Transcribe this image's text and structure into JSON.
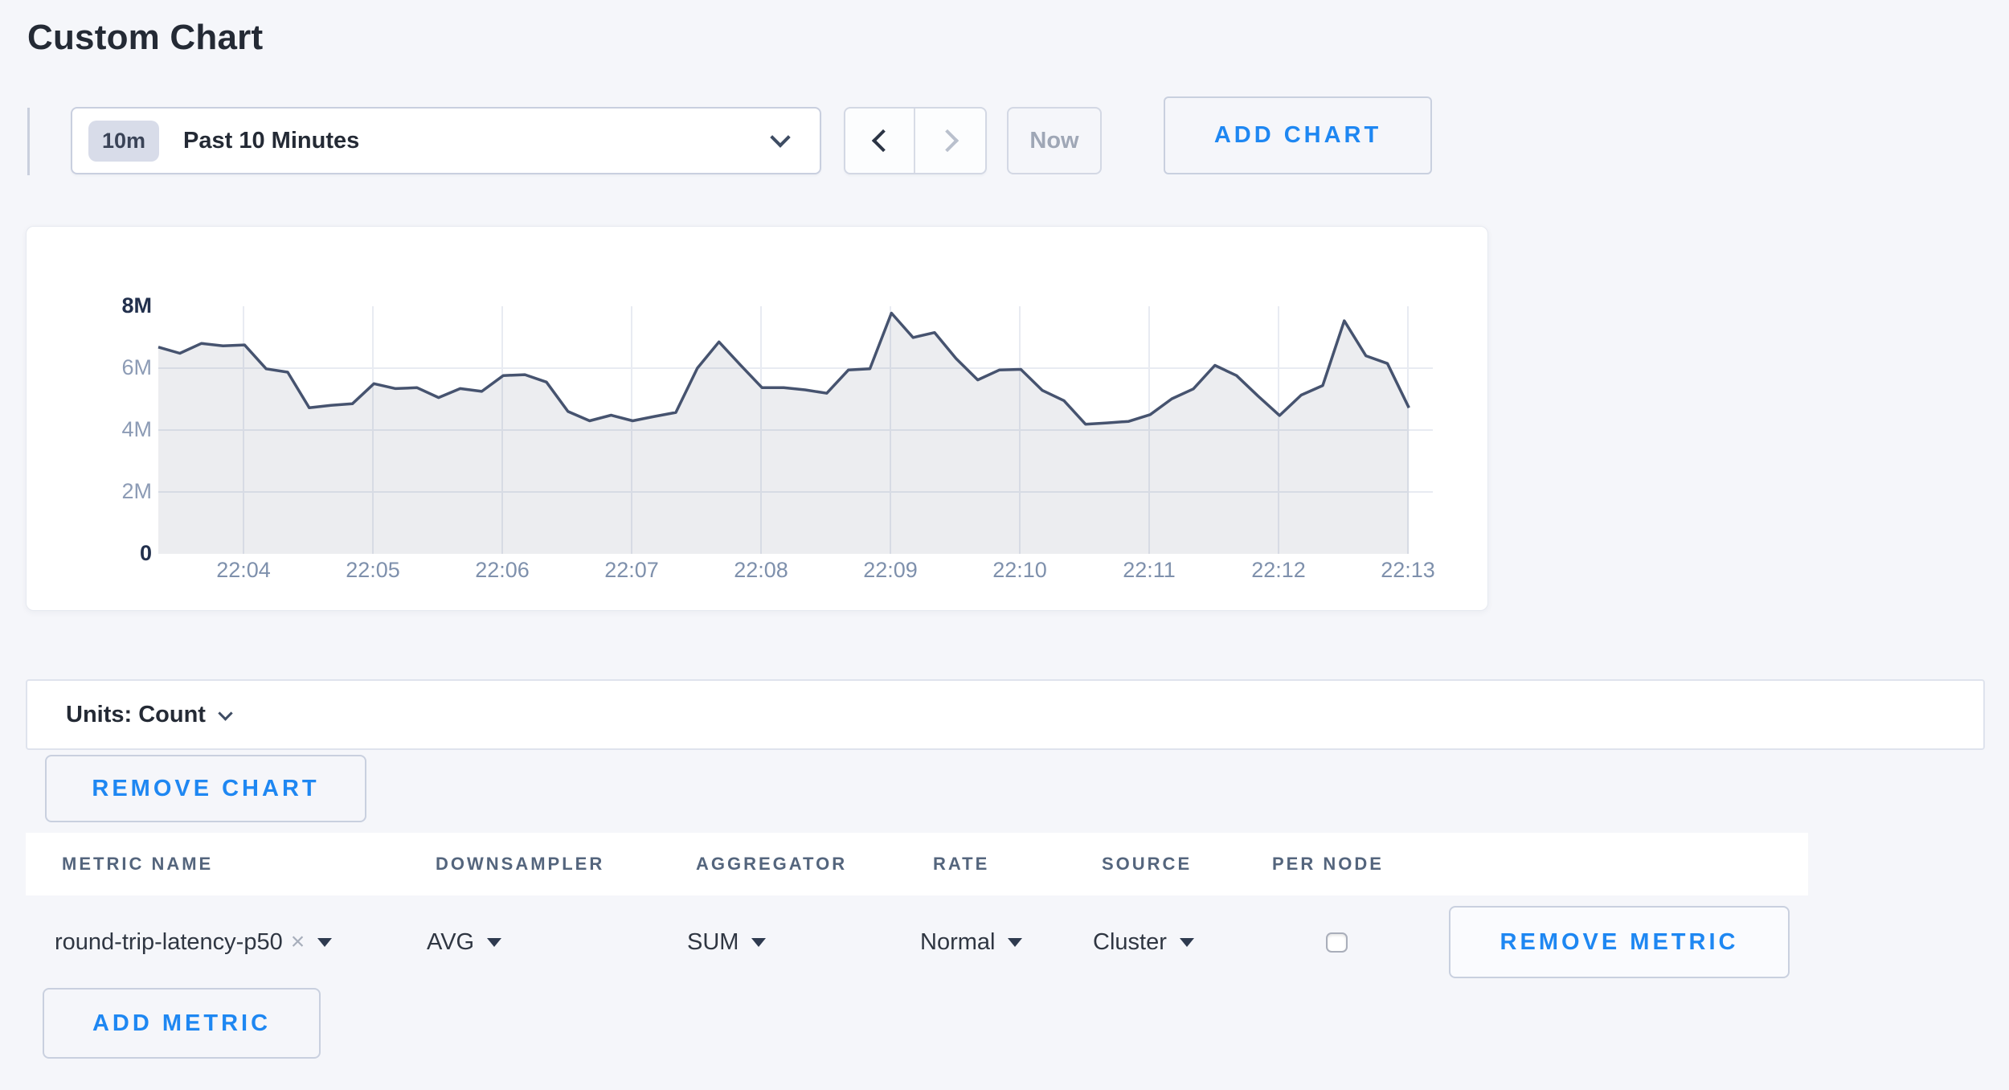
{
  "page": {
    "title": "Custom Chart",
    "background": "#F5F6FA",
    "accent_blue": "#1E87F2"
  },
  "toolbar": {
    "time_range": {
      "badge": "10m",
      "label": "Past 10 Minutes"
    },
    "now_label": "Now",
    "add_chart_label": "ADD CHART"
  },
  "icons": {
    "close": "×"
  },
  "units_bar": {
    "label": "Units: Count"
  },
  "buttons": {
    "remove_chart": "REMOVE CHART",
    "remove_metric": "REMOVE METRIC",
    "add_metric": "ADD METRIC"
  },
  "table": {
    "headers": [
      "METRIC NAME",
      "DOWNSAMPLER",
      "AGGREGATOR",
      "RATE",
      "SOURCE",
      "PER NODE"
    ],
    "rows": [
      {
        "metric_name": "round-trip-latency-p50",
        "downsampler": "AVG",
        "aggregator": "SUM",
        "rate": "Normal",
        "source": "Cluster",
        "per_node_checked": false
      }
    ]
  },
  "chart_data": {
    "type": "area",
    "title": "",
    "xlabel": "",
    "ylabel": "",
    "ylim": [
      0,
      8000000
    ],
    "y_tick_labels": [
      "8M",
      "6M",
      "4M",
      "2M",
      "0"
    ],
    "x_tick_labels": [
      "22:04",
      "22:05",
      "22:06",
      "22:07",
      "22:08",
      "22:09",
      "22:10",
      "22:11",
      "22:12",
      "22:13"
    ],
    "x_start": "22:03:20",
    "x_interval_seconds": 10,
    "grid": true,
    "legend": "none",
    "line_color": "#46536F",
    "fill_color": "rgba(70,83,111,0.10)",
    "grid_color": "#E8EBF2",
    "series": [
      {
        "name": "round-trip-latency-p50",
        "unit": "Count",
        "values_millions": [
          6.68,
          6.48,
          6.8,
          6.72,
          6.75,
          5.98,
          5.87,
          4.72,
          4.8,
          4.85,
          5.5,
          5.34,
          5.37,
          5.05,
          5.34,
          5.25,
          5.76,
          5.79,
          5.55,
          4.6,
          4.3,
          4.48,
          4.3,
          4.44,
          4.57,
          6.0,
          6.85,
          6.1,
          5.37,
          5.37,
          5.3,
          5.19,
          5.94,
          5.98,
          7.78,
          6.99,
          7.15,
          6.31,
          5.62,
          5.94,
          5.96,
          5.28,
          4.95,
          4.19,
          4.23,
          4.28,
          4.5,
          5.01,
          5.33,
          6.09,
          5.76,
          5.1,
          4.47,
          5.13,
          5.44,
          7.53,
          6.4,
          6.15,
          4.72
        ]
      }
    ]
  }
}
